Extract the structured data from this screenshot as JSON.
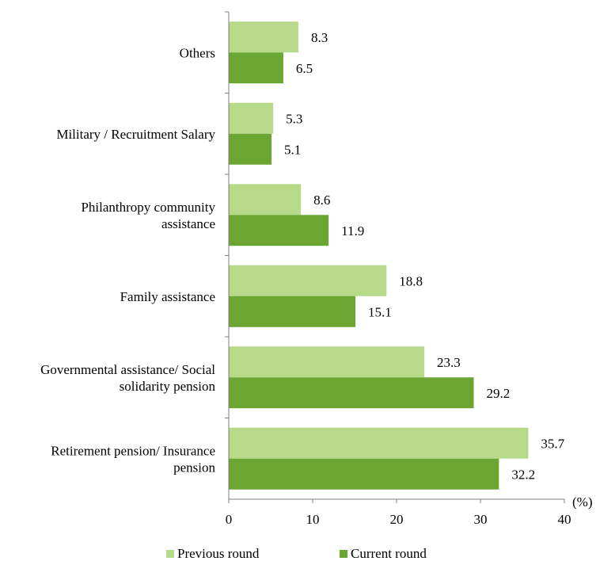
{
  "chart_data": {
    "type": "bar",
    "orientation": "horizontal",
    "categories": [
      "Others",
      "Military / Recruitment Salary",
      "Philanthropy community assistance",
      "Family assistance",
      "Governmental assistance/ Social solidarity pension",
      "Retirement pension/ Insurance pension"
    ],
    "category_lines": [
      [
        "Others"
      ],
      [
        "Military / Recruitment Salary"
      ],
      [
        "Philanthropy community",
        "assistance"
      ],
      [
        "Family assistance"
      ],
      [
        "Governmental assistance/ Social",
        "solidarity pension"
      ],
      [
        "Retirement pension/ Insurance",
        "pension"
      ]
    ],
    "series": [
      {
        "name": "Previous round",
        "color": "#b6d98a",
        "values": [
          8.3,
          5.3,
          8.6,
          18.8,
          23.3,
          35.7
        ]
      },
      {
        "name": "Current round",
        "color": "#6aa631",
        "values": [
          6.5,
          5.1,
          11.9,
          15.1,
          29.2,
          32.2
        ]
      }
    ],
    "value_labels": [
      [
        "8.3",
        "5.3",
        "8.6",
        "18.8",
        "23.3",
        "35.7"
      ],
      [
        "6.5",
        "5.1",
        "11.9",
        "15.1",
        "29.2",
        "32.2"
      ]
    ],
    "xlim": [
      0,
      40
    ],
    "xticks": [
      "0",
      "10",
      "20",
      "30",
      "40"
    ],
    "xunit": "(%)",
    "grid": false,
    "legend_position": "bottom"
  }
}
